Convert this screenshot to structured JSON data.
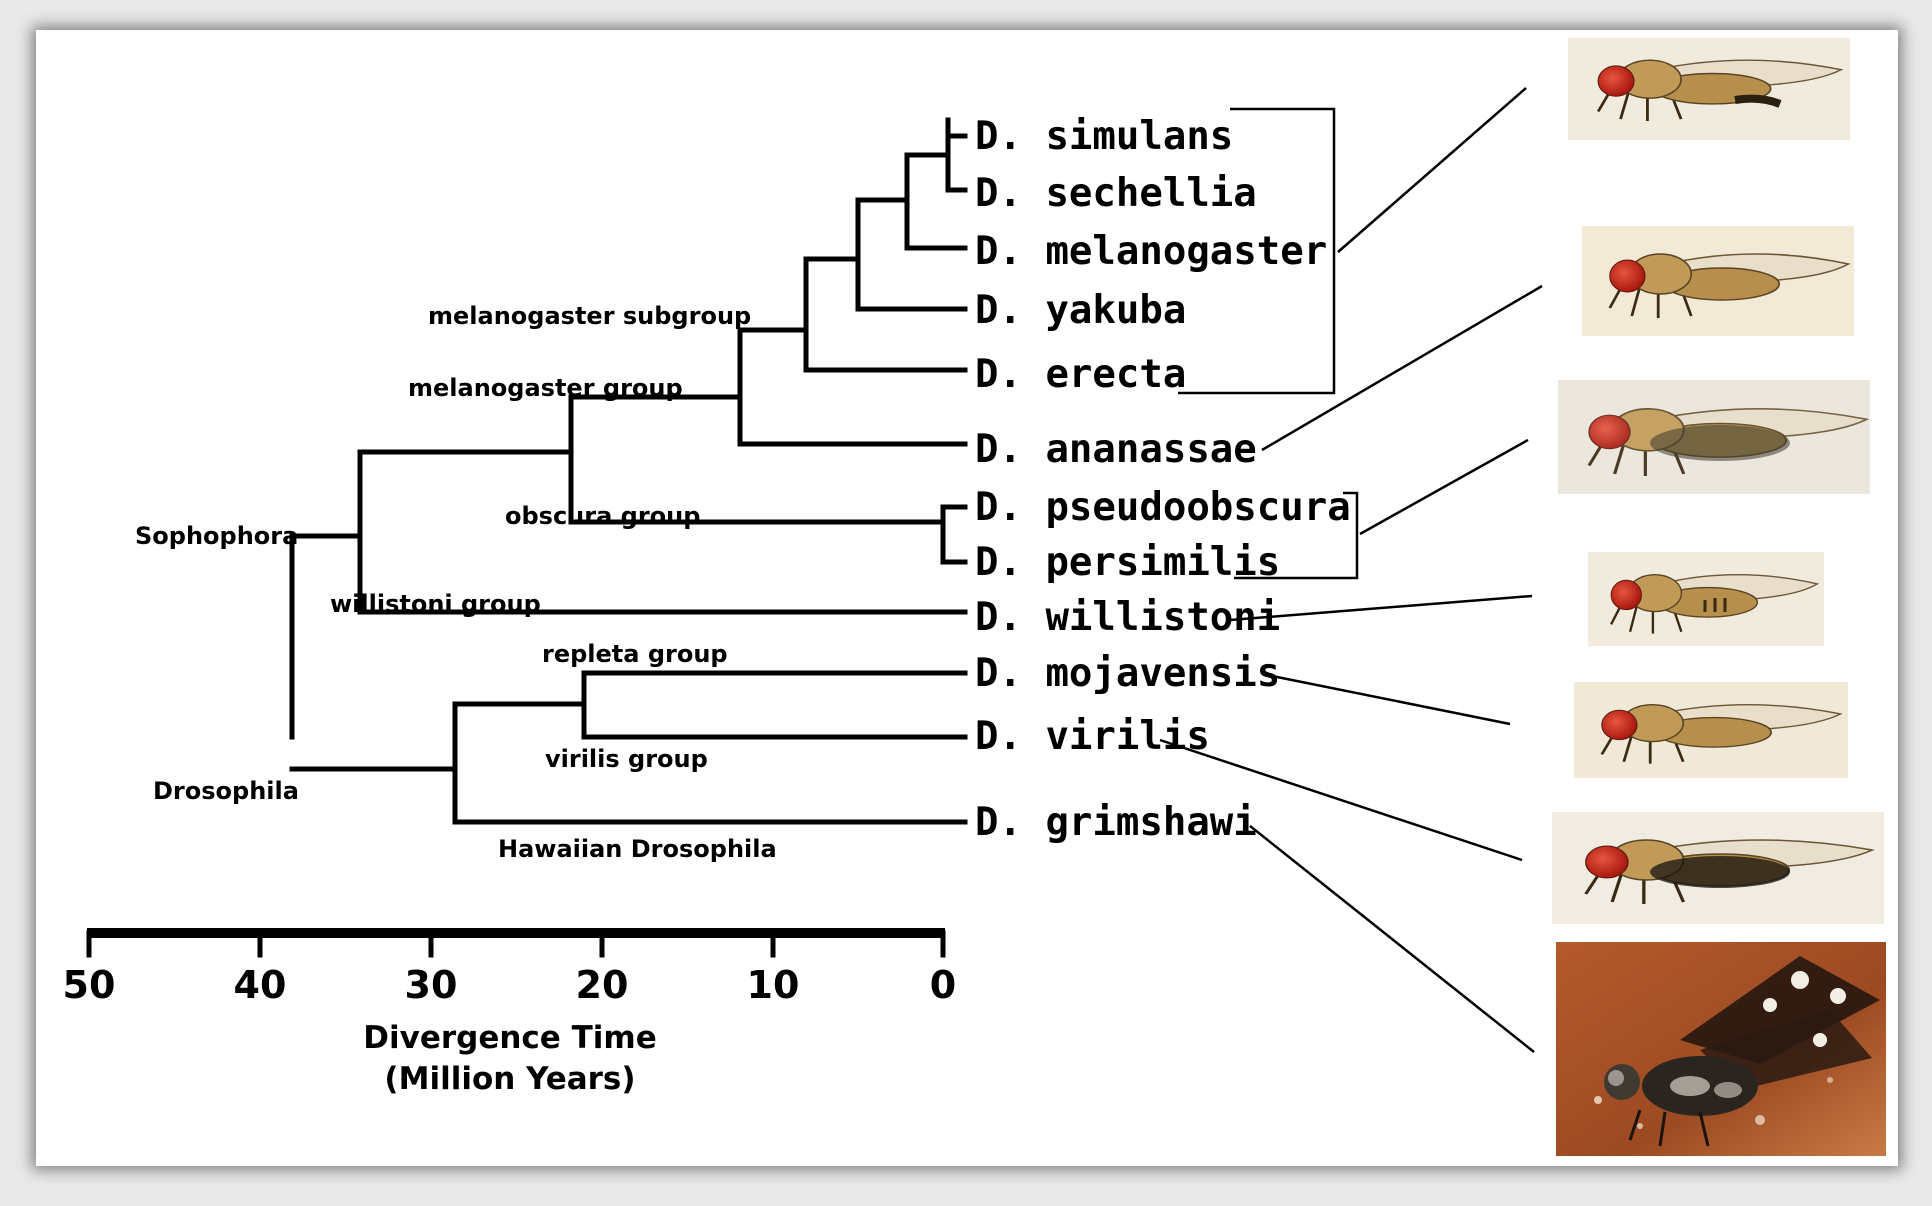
{
  "species": [
    "D. simulans",
    "D. sechellia",
    "D. melanogaster",
    "D. yakuba",
    "D. erecta",
    "D. ananassae",
    "D. pseudoobscura",
    "D. persimilis",
    "D. willistoni",
    "D. mojavensis",
    "D. virilis",
    "D. grimshawi"
  ],
  "clades": {
    "melanogaster_subgroup": "melanogaster subgroup",
    "melanogaster_group": "melanogaster group",
    "obscura_group": "obscura group",
    "willistoni_group": "willistoni group",
    "sophophora": "Sophophora",
    "repleta_group": "repleta group",
    "virilis_group": "virilis group",
    "drosophila": "Drosophila",
    "hawaiian": "Hawaiian Drosophila"
  },
  "axis": {
    "ticks": [
      "50",
      "40",
      "30",
      "20",
      "10",
      "0"
    ],
    "label_line1": "Divergence Time",
    "label_line2": "(Million Years)"
  },
  "colors": {
    "ink": "#000000",
    "fly_body": "#c9a25c",
    "fly_eye": "#c8261b",
    "photo_bg": "#a24f24"
  }
}
